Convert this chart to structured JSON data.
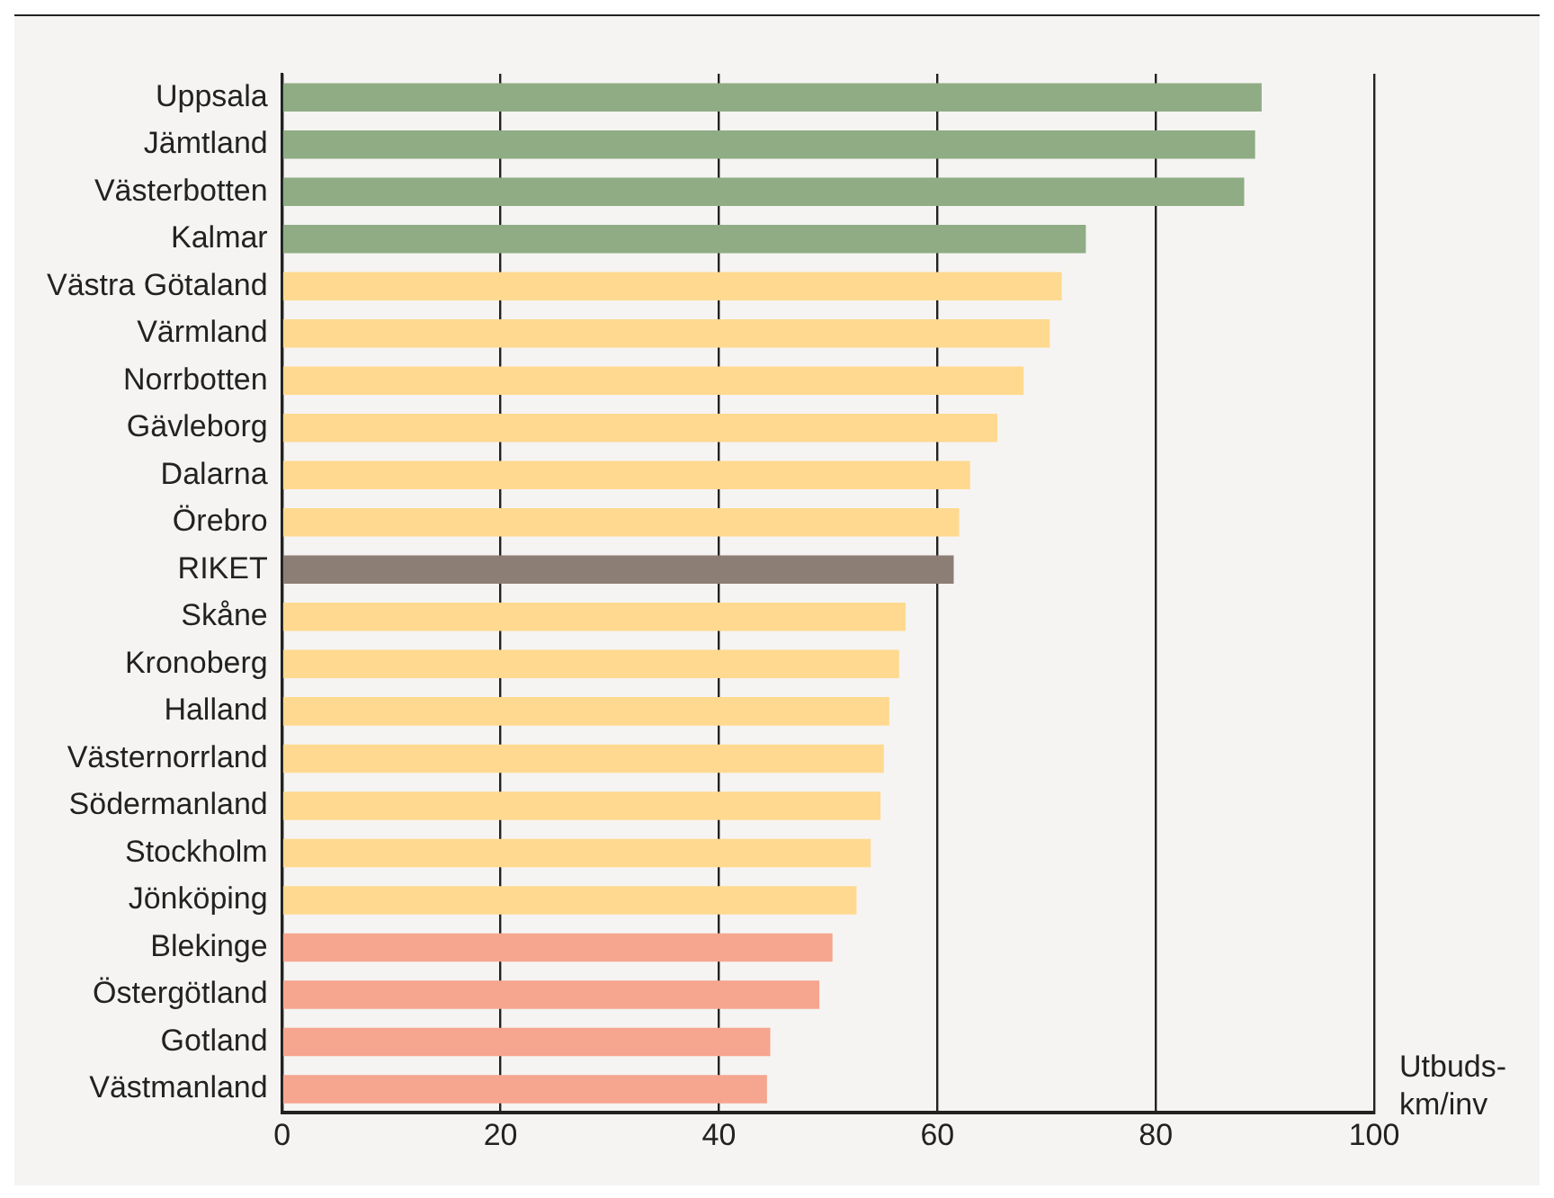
{
  "chart_data": {
    "type": "bar",
    "orientation": "horizontal",
    "xlabel": "Utbuds-km/inv",
    "categories": [
      "Uppsala",
      "Jämtland",
      "Västerbotten",
      "Kalmar",
      "Västra Götaland",
      "Värmland",
      "Norrbotten",
      "Gävleborg",
      "Dalarna",
      "Örebro",
      "RIKET",
      "Skåne",
      "Kronoberg",
      "Halland",
      "Västernorrland",
      "Södermanland",
      "Stockholm",
      "Jönköping",
      "Blekinge",
      "Östergötland",
      "Gotland",
      "Västmanland"
    ],
    "values": [
      89.7,
      89.1,
      88.1,
      73.6,
      71.4,
      70.3,
      67.9,
      65.5,
      63.0,
      62.0,
      61.5,
      57.1,
      56.5,
      55.6,
      55.1,
      54.8,
      53.9,
      52.6,
      50.4,
      49.2,
      44.7,
      44.4
    ],
    "colors": [
      "#8fac84",
      "#8fac84",
      "#8fac84",
      "#8fac84",
      "#ffd98f",
      "#ffd98f",
      "#ffd98f",
      "#ffd98f",
      "#ffd98f",
      "#ffd98f",
      "#8c7e75",
      "#ffd98f",
      "#ffd98f",
      "#ffd98f",
      "#ffd98f",
      "#ffd98f",
      "#ffd98f",
      "#ffd98f",
      "#f6a58e",
      "#f6a58e",
      "#f6a58e",
      "#f6a58e"
    ],
    "xlim": [
      0,
      100
    ],
    "xticks": [
      0,
      20,
      40,
      60,
      80,
      100
    ],
    "grid": "x",
    "legend": false
  }
}
